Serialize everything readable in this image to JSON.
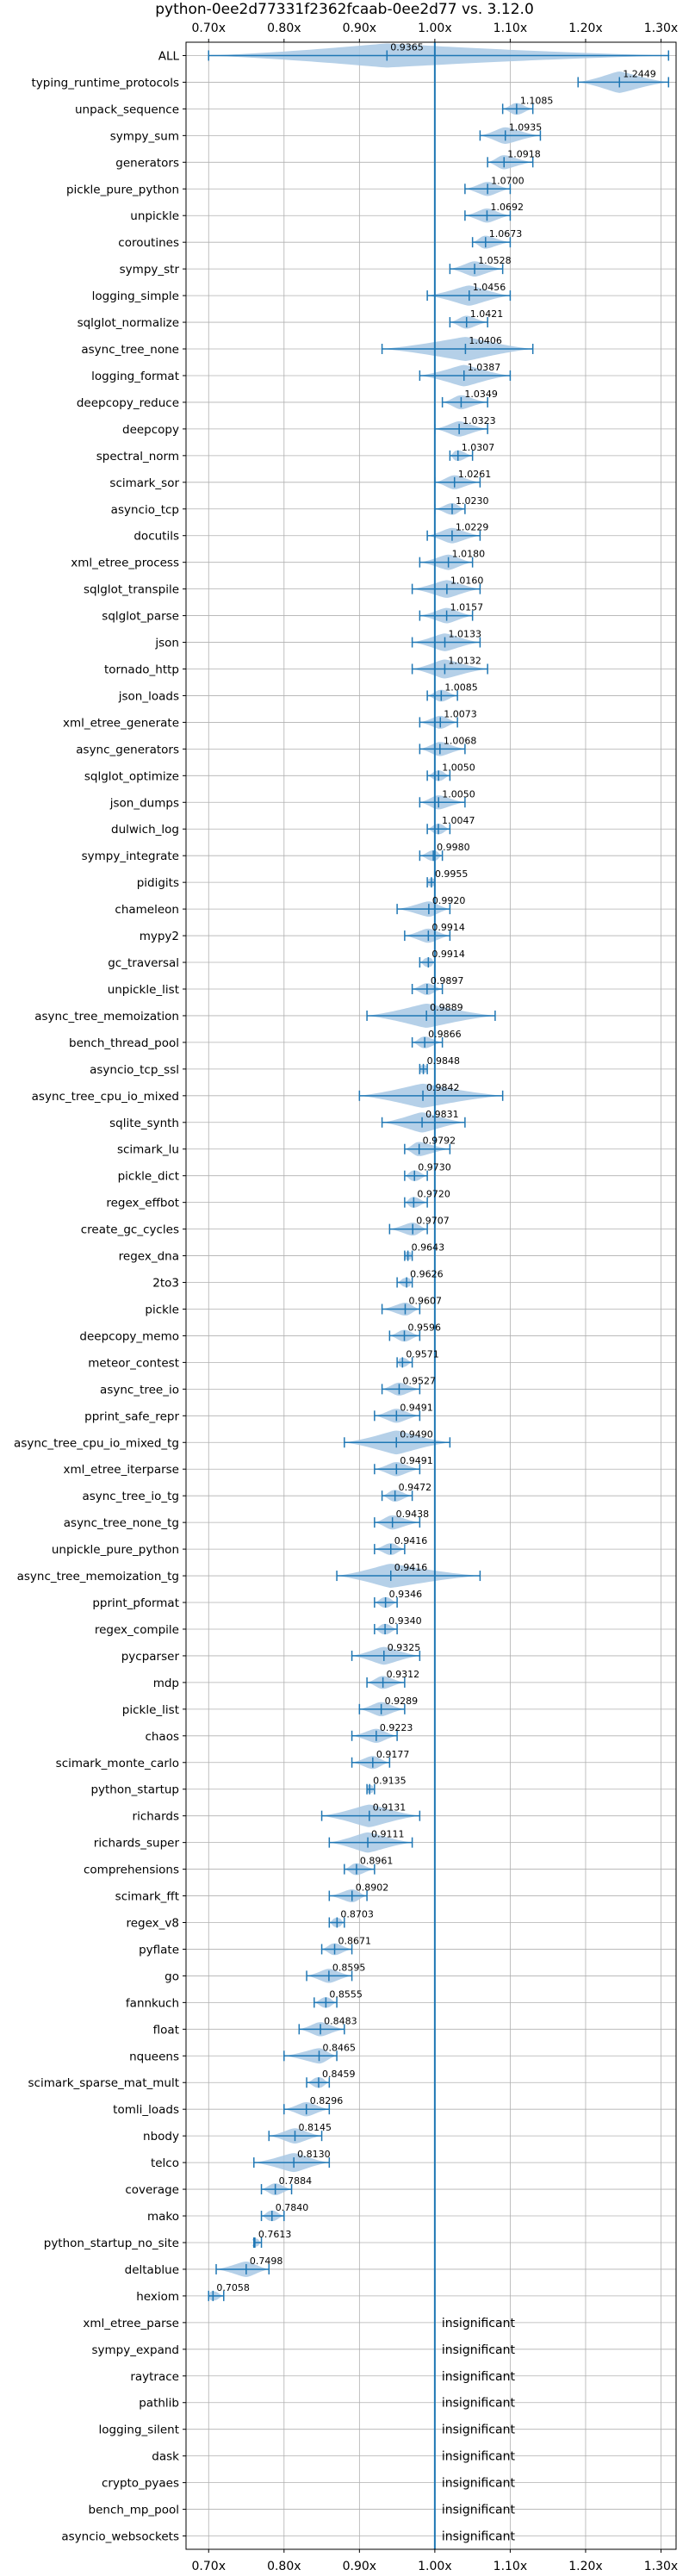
{
  "chart_data": {
    "type": "violin",
    "title": "python-0ee2d77331f2362fcaab-0ee2d77 vs. 3.12.0",
    "xlim": [
      0.67,
      1.32
    ],
    "xticks": [
      0.7,
      0.8,
      0.9,
      1.0,
      1.1,
      1.2,
      1.3
    ],
    "xtick_labels": [
      "0.70x",
      "0.80x",
      "0.90x",
      "1.00x",
      "1.10x",
      "1.20x",
      "1.30x"
    ],
    "reference_line": 1.0,
    "grid": true,
    "colors": {
      "violin": "#a8c8e4",
      "line": "#1f77b4"
    },
    "insignificant_label": "insignificant",
    "benchmarks": [
      {
        "name": "ALL",
        "value": 0.9365,
        "label": "0.9365",
        "min": 0.7,
        "max": 1.31
      },
      {
        "name": "typing_runtime_protocols",
        "value": 1.2449,
        "label": "1.2449",
        "min": 1.19,
        "max": 1.31
      },
      {
        "name": "unpack_sequence",
        "value": 1.1085,
        "label": "1.1085",
        "min": 1.09,
        "max": 1.13
      },
      {
        "name": "sympy_sum",
        "value": 1.0935,
        "label": "1.0935",
        "min": 1.06,
        "max": 1.14
      },
      {
        "name": "generators",
        "value": 1.0918,
        "label": "1.0918",
        "min": 1.07,
        "max": 1.13
      },
      {
        "name": "pickle_pure_python",
        "value": 1.07,
        "label": "1.0700",
        "min": 1.04,
        "max": 1.1
      },
      {
        "name": "unpickle",
        "value": 1.0692,
        "label": "1.0692",
        "min": 1.04,
        "max": 1.1
      },
      {
        "name": "coroutines",
        "value": 1.0673,
        "label": "1.0673",
        "min": 1.05,
        "max": 1.1
      },
      {
        "name": "sympy_str",
        "value": 1.0528,
        "label": "1.0528",
        "min": 1.02,
        "max": 1.09
      },
      {
        "name": "logging_simple",
        "value": 1.0456,
        "label": "1.0456",
        "min": 0.99,
        "max": 1.1
      },
      {
        "name": "sqlglot_normalize",
        "value": 1.0421,
        "label": "1.0421",
        "min": 1.02,
        "max": 1.07
      },
      {
        "name": "async_tree_none",
        "value": 1.0406,
        "label": "1.0406",
        "min": 0.93,
        "max": 1.13
      },
      {
        "name": "logging_format",
        "value": 1.0387,
        "label": "1.0387",
        "min": 0.98,
        "max": 1.1
      },
      {
        "name": "deepcopy_reduce",
        "value": 1.0349,
        "label": "1.0349",
        "min": 1.01,
        "max": 1.07
      },
      {
        "name": "deepcopy",
        "value": 1.0323,
        "label": "1.0323",
        "min": 1.0,
        "max": 1.07
      },
      {
        "name": "spectral_norm",
        "value": 1.0307,
        "label": "1.0307",
        "min": 1.02,
        "max": 1.05
      },
      {
        "name": "scimark_sor",
        "value": 1.0261,
        "label": "1.0261",
        "min": 1.0,
        "max": 1.06
      },
      {
        "name": "asyncio_tcp",
        "value": 1.023,
        "label": "1.0230",
        "min": 1.0,
        "max": 1.04
      },
      {
        "name": "docutils",
        "value": 1.0229,
        "label": "1.0229",
        "min": 0.99,
        "max": 1.06
      },
      {
        "name": "xml_etree_process",
        "value": 1.018,
        "label": "1.0180",
        "min": 0.98,
        "max": 1.05
      },
      {
        "name": "sqlglot_transpile",
        "value": 1.016,
        "label": "1.0160",
        "min": 0.97,
        "max": 1.06
      },
      {
        "name": "sqlglot_parse",
        "value": 1.0157,
        "label": "1.0157",
        "min": 0.98,
        "max": 1.05
      },
      {
        "name": "json",
        "value": 1.0133,
        "label": "1.0133",
        "min": 0.97,
        "max": 1.06
      },
      {
        "name": "tornado_http",
        "value": 1.0132,
        "label": "1.0132",
        "min": 0.97,
        "max": 1.07
      },
      {
        "name": "json_loads",
        "value": 1.0085,
        "label": "1.0085",
        "min": 0.99,
        "max": 1.03
      },
      {
        "name": "xml_etree_generate",
        "value": 1.0073,
        "label": "1.0073",
        "min": 0.98,
        "max": 1.03
      },
      {
        "name": "async_generators",
        "value": 1.0068,
        "label": "1.0068",
        "min": 0.98,
        "max": 1.04
      },
      {
        "name": "sqlglot_optimize",
        "value": 1.005,
        "label": "1.0050",
        "min": 0.99,
        "max": 1.02
      },
      {
        "name": "json_dumps",
        "value": 1.005,
        "label": "1.0050",
        "min": 0.98,
        "max": 1.04
      },
      {
        "name": "dulwich_log",
        "value": 1.0047,
        "label": "1.0047",
        "min": 0.99,
        "max": 1.02
      },
      {
        "name": "sympy_integrate",
        "value": 0.998,
        "label": "0.9980",
        "min": 0.98,
        "max": 1.01
      },
      {
        "name": "pidigits",
        "value": 0.9955,
        "label": "0.9955",
        "min": 0.99,
        "max": 1.0
      },
      {
        "name": "chameleon",
        "value": 0.992,
        "label": "0.9920",
        "min": 0.95,
        "max": 1.02
      },
      {
        "name": "mypy2",
        "value": 0.9914,
        "label": "0.9914",
        "min": 0.96,
        "max": 1.02
      },
      {
        "name": "gc_traversal",
        "value": 0.9914,
        "label": "0.9914",
        "min": 0.98,
        "max": 1.0
      },
      {
        "name": "unpickle_list",
        "value": 0.9897,
        "label": "0.9897",
        "min": 0.97,
        "max": 1.01
      },
      {
        "name": "async_tree_memoization",
        "value": 0.9889,
        "label": "0.9889",
        "min": 0.91,
        "max": 1.08
      },
      {
        "name": "bench_thread_pool",
        "value": 0.9866,
        "label": "0.9866",
        "min": 0.97,
        "max": 1.01
      },
      {
        "name": "asyncio_tcp_ssl",
        "value": 0.9848,
        "label": "0.9848",
        "min": 0.98,
        "max": 0.99
      },
      {
        "name": "async_tree_cpu_io_mixed",
        "value": 0.9842,
        "label": "0.9842",
        "min": 0.9,
        "max": 1.09
      },
      {
        "name": "sqlite_synth",
        "value": 0.9831,
        "label": "0.9831",
        "min": 0.93,
        "max": 1.04
      },
      {
        "name": "scimark_lu",
        "value": 0.9792,
        "label": "0.9792",
        "min": 0.96,
        "max": 1.02
      },
      {
        "name": "pickle_dict",
        "value": 0.973,
        "label": "0.9730",
        "min": 0.96,
        "max": 0.99
      },
      {
        "name": "regex_effbot",
        "value": 0.972,
        "label": "0.9720",
        "min": 0.96,
        "max": 0.99
      },
      {
        "name": "create_gc_cycles",
        "value": 0.9707,
        "label": "0.9707",
        "min": 0.94,
        "max": 0.99
      },
      {
        "name": "regex_dna",
        "value": 0.9643,
        "label": "0.9643",
        "min": 0.96,
        "max": 0.97
      },
      {
        "name": "2to3",
        "value": 0.9626,
        "label": "0.9626",
        "min": 0.95,
        "max": 0.97
      },
      {
        "name": "pickle",
        "value": 0.9607,
        "label": "0.9607",
        "min": 0.93,
        "max": 0.98
      },
      {
        "name": "deepcopy_memo",
        "value": 0.9596,
        "label": "0.9596",
        "min": 0.94,
        "max": 0.98
      },
      {
        "name": "meteor_contest",
        "value": 0.9571,
        "label": "0.9571",
        "min": 0.95,
        "max": 0.97
      },
      {
        "name": "async_tree_io",
        "value": 0.9527,
        "label": "0.9527",
        "min": 0.93,
        "max": 0.98
      },
      {
        "name": "pprint_safe_repr",
        "value": 0.9491,
        "label": "0.9491",
        "min": 0.92,
        "max": 0.98
      },
      {
        "name": "async_tree_cpu_io_mixed_tg",
        "value": 0.949,
        "label": "0.9490",
        "min": 0.88,
        "max": 1.02
      },
      {
        "name": "xml_etree_iterparse",
        "value": 0.9491,
        "label": "0.9491",
        "min": 0.92,
        "max": 0.98
      },
      {
        "name": "async_tree_io_tg",
        "value": 0.9472,
        "label": "0.9472",
        "min": 0.93,
        "max": 0.97
      },
      {
        "name": "async_tree_none_tg",
        "value": 0.9438,
        "label": "0.9438",
        "min": 0.92,
        "max": 0.98
      },
      {
        "name": "unpickle_pure_python",
        "value": 0.9416,
        "label": "0.9416",
        "min": 0.92,
        "max": 0.96
      },
      {
        "name": "async_tree_memoization_tg",
        "value": 0.9416,
        "label": "0.9416",
        "min": 0.87,
        "max": 1.06
      },
      {
        "name": "pprint_pformat",
        "value": 0.9346,
        "label": "0.9346",
        "min": 0.92,
        "max": 0.95
      },
      {
        "name": "regex_compile",
        "value": 0.934,
        "label": "0.9340",
        "min": 0.92,
        "max": 0.95
      },
      {
        "name": "pycparser",
        "value": 0.9325,
        "label": "0.9325",
        "min": 0.89,
        "max": 0.98
      },
      {
        "name": "mdp",
        "value": 0.9312,
        "label": "0.9312",
        "min": 0.91,
        "max": 0.96
      },
      {
        "name": "pickle_list",
        "value": 0.9289,
        "label": "0.9289",
        "min": 0.9,
        "max": 0.96
      },
      {
        "name": "chaos",
        "value": 0.9223,
        "label": "0.9223",
        "min": 0.89,
        "max": 0.95
      },
      {
        "name": "scimark_monte_carlo",
        "value": 0.9177,
        "label": "0.9177",
        "min": 0.89,
        "max": 0.94
      },
      {
        "name": "python_startup",
        "value": 0.9135,
        "label": "0.9135",
        "min": 0.91,
        "max": 0.92
      },
      {
        "name": "richards",
        "value": 0.9131,
        "label": "0.9131",
        "min": 0.85,
        "max": 0.98
      },
      {
        "name": "richards_super",
        "value": 0.9111,
        "label": "0.9111",
        "min": 0.86,
        "max": 0.97
      },
      {
        "name": "comprehensions",
        "value": 0.8961,
        "label": "0.8961",
        "min": 0.88,
        "max": 0.92
      },
      {
        "name": "scimark_fft",
        "value": 0.8902,
        "label": "0.8902",
        "min": 0.86,
        "max": 0.91
      },
      {
        "name": "regex_v8",
        "value": 0.8703,
        "label": "0.8703",
        "min": 0.86,
        "max": 0.88
      },
      {
        "name": "pyflate",
        "value": 0.8671,
        "label": "0.8671",
        "min": 0.85,
        "max": 0.89
      },
      {
        "name": "go",
        "value": 0.8595,
        "label": "0.8595",
        "min": 0.83,
        "max": 0.89
      },
      {
        "name": "fannkuch",
        "value": 0.8555,
        "label": "0.8555",
        "min": 0.84,
        "max": 0.87
      },
      {
        "name": "float",
        "value": 0.8483,
        "label": "0.8483",
        "min": 0.82,
        "max": 0.88
      },
      {
        "name": "nqueens",
        "value": 0.8465,
        "label": "0.8465",
        "min": 0.8,
        "max": 0.87
      },
      {
        "name": "scimark_sparse_mat_mult",
        "value": 0.8459,
        "label": "0.8459",
        "min": 0.83,
        "max": 0.86
      },
      {
        "name": "tomli_loads",
        "value": 0.8296,
        "label": "0.8296",
        "min": 0.8,
        "max": 0.86
      },
      {
        "name": "nbody",
        "value": 0.8145,
        "label": "0.8145",
        "min": 0.78,
        "max": 0.85
      },
      {
        "name": "telco",
        "value": 0.813,
        "label": "0.8130",
        "min": 0.76,
        "max": 0.86
      },
      {
        "name": "coverage",
        "value": 0.7884,
        "label": "0.7884",
        "min": 0.77,
        "max": 0.81
      },
      {
        "name": "mako",
        "value": 0.784,
        "label": "0.7840",
        "min": 0.77,
        "max": 0.8
      },
      {
        "name": "python_startup_no_site",
        "value": 0.7613,
        "label": "0.7613",
        "min": 0.76,
        "max": 0.77
      },
      {
        "name": "deltablue",
        "value": 0.7498,
        "label": "0.7498",
        "min": 0.71,
        "max": 0.78
      },
      {
        "name": "hexiom",
        "value": 0.7058,
        "label": "0.7058",
        "min": 0.7,
        "max": 0.72
      },
      {
        "name": "xml_etree_parse",
        "insignificant": true
      },
      {
        "name": "sympy_expand",
        "insignificant": true
      },
      {
        "name": "raytrace",
        "insignificant": true
      },
      {
        "name": "pathlib",
        "insignificant": true
      },
      {
        "name": "logging_silent",
        "insignificant": true
      },
      {
        "name": "dask",
        "insignificant": true
      },
      {
        "name": "crypto_pyaes",
        "insignificant": true
      },
      {
        "name": "bench_mp_pool",
        "insignificant": true
      },
      {
        "name": "asyncio_websockets",
        "insignificant": true
      }
    ]
  }
}
